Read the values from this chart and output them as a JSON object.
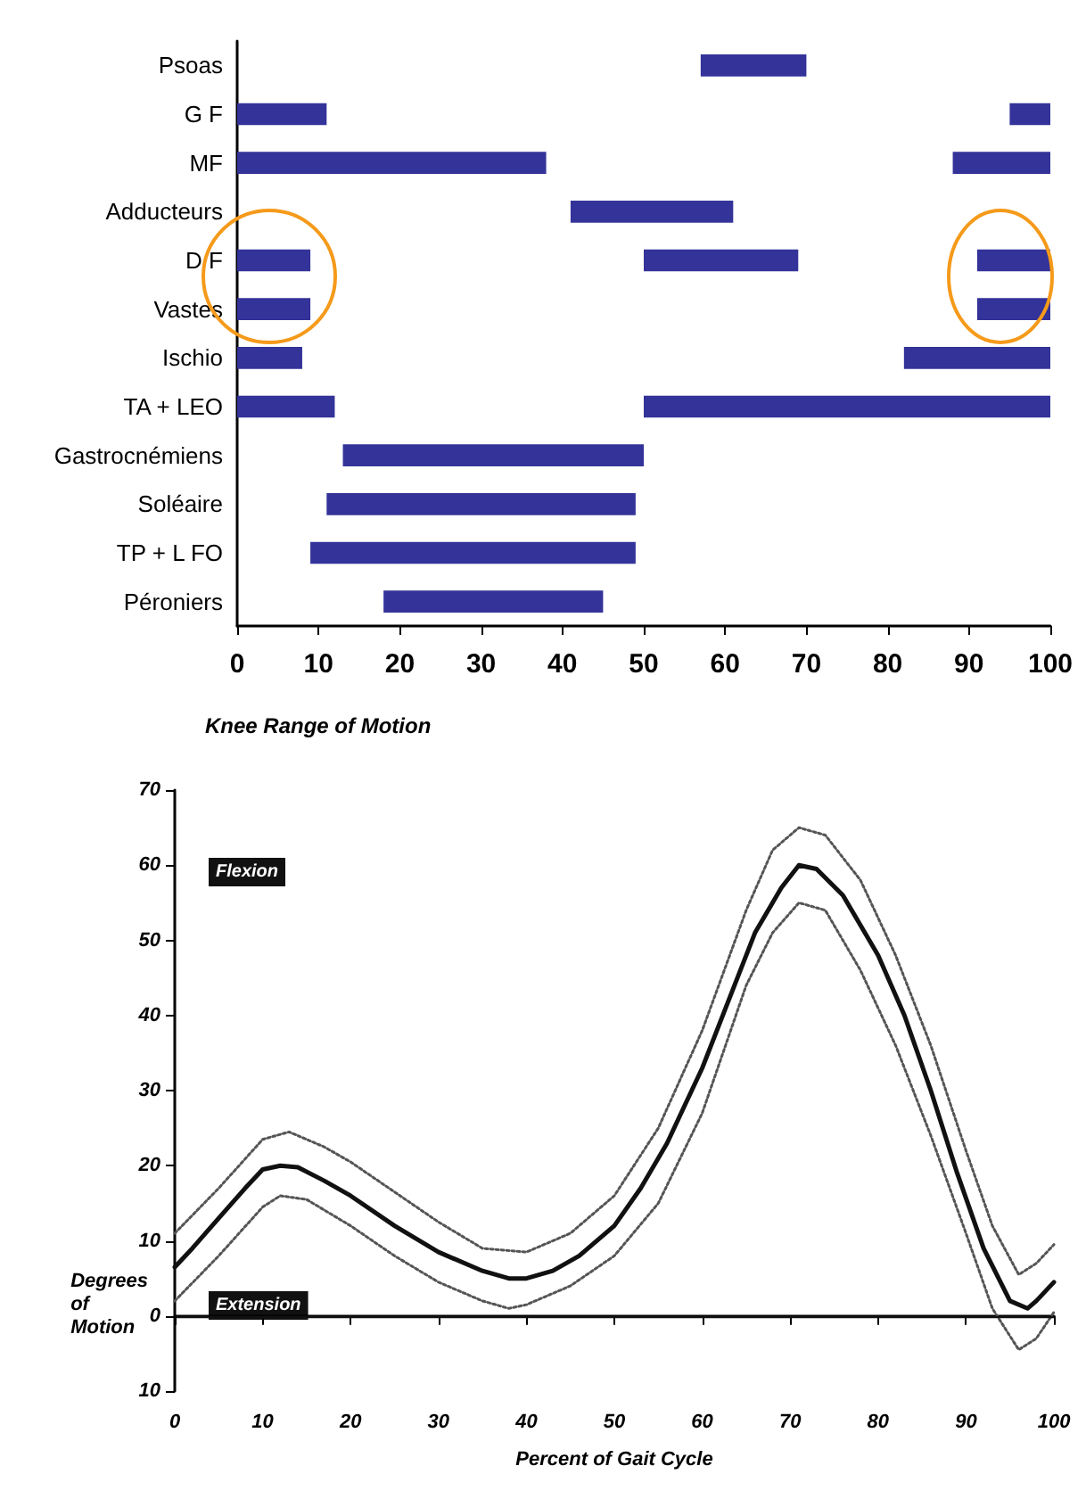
{
  "chart_data": [
    {
      "type": "bar",
      "orientation": "horizontal",
      "categories": [
        "Psoas",
        "G F",
        "MF",
        "Adducteurs",
        "D F",
        "Vastes",
        "Ischio",
        "TA + LEO",
        "Gastrocnémiens",
        "Soléaire",
        "TP + L FO",
        "Péroniers"
      ],
      "series": [
        {
          "color": "#333399",
          "base": [
            57,
            0,
            0,
            41,
            0,
            0,
            0,
            0,
            13,
            11,
            9,
            18
          ],
          "values": [
            13,
            11,
            38,
            20,
            9,
            9,
            8,
            12,
            37,
            38,
            40,
            27
          ]
        },
        {
          "color": "#333399",
          "base": [
            null,
            95,
            88,
            null,
            50,
            91,
            82,
            50,
            null,
            null,
            null,
            null
          ],
          "values": [
            null,
            5,
            12,
            null,
            19,
            9,
            18,
            50,
            null,
            null,
            null,
            null
          ]
        },
        {
          "color": "#333399",
          "base": [
            null,
            null,
            null,
            null,
            91,
            null,
            null,
            null,
            null,
            null,
            null,
            null
          ],
          "values": [
            null,
            null,
            null,
            null,
            9,
            null,
            null,
            null,
            null,
            null,
            null,
            null
          ]
        }
      ],
      "xlim": [
        0,
        100
      ],
      "xticks": [
        0,
        10,
        20,
        30,
        40,
        50,
        60,
        70,
        80,
        90,
        100
      ]
    },
    {
      "type": "line",
      "title": "Knee Range of Motion",
      "xlabel": "Percent of Gait Cycle",
      "ylabel": "Degrees of Motion",
      "annotations": [
        "Flexion",
        "Extension"
      ],
      "series": [
        {
          "color": "#111111",
          "line_style": "solid",
          "x": [
            0,
            2,
            5,
            8,
            10,
            12,
            14,
            17,
            20,
            25,
            30,
            35,
            38,
            40,
            43,
            46,
            50,
            53,
            56,
            60,
            63,
            66,
            69,
            71,
            73,
            76,
            80,
            83,
            86,
            89,
            92,
            95,
            97,
            98,
            100
          ],
          "values": [
            6.5,
            9,
            13,
            17,
            19.5,
            20,
            19.8,
            18,
            16,
            12,
            8.5,
            6,
            5,
            5,
            6,
            8,
            12,
            17,
            23,
            33,
            42,
            51,
            57,
            60,
            59.5,
            56,
            48,
            40,
            30,
            19,
            9,
            2,
            1,
            2,
            4.5
          ]
        },
        {
          "color": "#555555",
          "line_style": "dotted",
          "x": [
            0,
            5,
            10,
            13,
            17,
            20,
            25,
            30,
            35,
            40,
            45,
            50,
            55,
            60,
            65,
            68,
            71,
            74,
            78,
            82,
            86,
            90,
            93,
            96,
            98,
            100
          ],
          "values": [
            11,
            17,
            23.5,
            24.5,
            22.5,
            20.5,
            16.5,
            12.5,
            9,
            8.5,
            11,
            16,
            25,
            38,
            54,
            62,
            65,
            64,
            58,
            48,
            36,
            22,
            12,
            5.5,
            7,
            9.5
          ]
        },
        {
          "color": "#555555",
          "line_style": "dotted",
          "x": [
            0,
            5,
            10,
            12,
            15,
            20,
            25,
            30,
            35,
            38,
            40,
            45,
            50,
            55,
            60,
            65,
            68,
            71,
            74,
            78,
            82,
            86,
            90,
            93,
            96,
            98,
            100
          ],
          "values": [
            2,
            8,
            14.5,
            16,
            15.5,
            12,
            8,
            4.5,
            2,
            1,
            1.5,
            4,
            8,
            15,
            27,
            44,
            51,
            55,
            54,
            46,
            36,
            24,
            11,
            1,
            -4.5,
            -3,
            0.5
          ]
        }
      ],
      "ref_lines": [
        {
          "axis": "y",
          "value": 0,
          "color": "#111111"
        }
      ],
      "xlim": [
        0,
        100
      ],
      "xticks": [
        0,
        10,
        20,
        30,
        40,
        50,
        60,
        70,
        80,
        90,
        100
      ],
      "ylim": [
        -10,
        70
      ],
      "yticks": [
        {
          "value": -10,
          "label": "10"
        },
        0,
        10,
        20,
        30,
        40,
        50,
        60,
        70
      ]
    }
  ]
}
